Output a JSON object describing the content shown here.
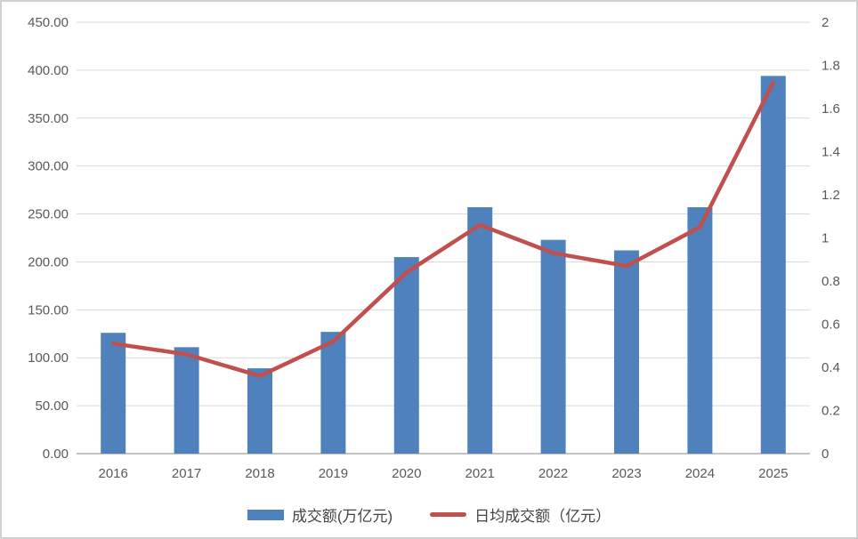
{
  "chart_data": {
    "type": "combo",
    "title": "",
    "categories": [
      "2016",
      "2017",
      "2018",
      "2019",
      "2020",
      "2021",
      "2022",
      "2023",
      "2024",
      "2025"
    ],
    "series": [
      {
        "name": "成交额(万亿元)",
        "type": "bar",
        "axis": "left",
        "color": "#4F81BD",
        "values": [
          126,
          111,
          89,
          127,
          205,
          257,
          223,
          212,
          257,
          394
        ]
      },
      {
        "name": "日均成交额（亿元）",
        "type": "line",
        "axis": "right",
        "color": "#C0504D",
        "values": [
          0.51,
          0.46,
          0.36,
          0.52,
          0.84,
          1.06,
          0.93,
          0.87,
          1.05,
          1.72
        ]
      }
    ],
    "left_axis": {
      "min": 0,
      "max": 450,
      "step": 50,
      "tick_labels": [
        "0.00",
        "50.00",
        "100.00",
        "150.00",
        "200.00",
        "250.00",
        "300.00",
        "350.00",
        "400.00",
        "450.00"
      ]
    },
    "right_axis": {
      "min": 0,
      "max": 2,
      "step": 0.2,
      "tick_labels": [
        "0",
        "0.2",
        "0.4",
        "0.6",
        "0.8",
        "1",
        "1.2",
        "1.4",
        "1.6",
        "1.8",
        "2"
      ]
    },
    "grid": true,
    "legend_position": "bottom",
    "colors": {
      "grid_line": "#d9d9d9",
      "axis_line": "#c3c3c3",
      "tick_text": "#595959"
    }
  }
}
